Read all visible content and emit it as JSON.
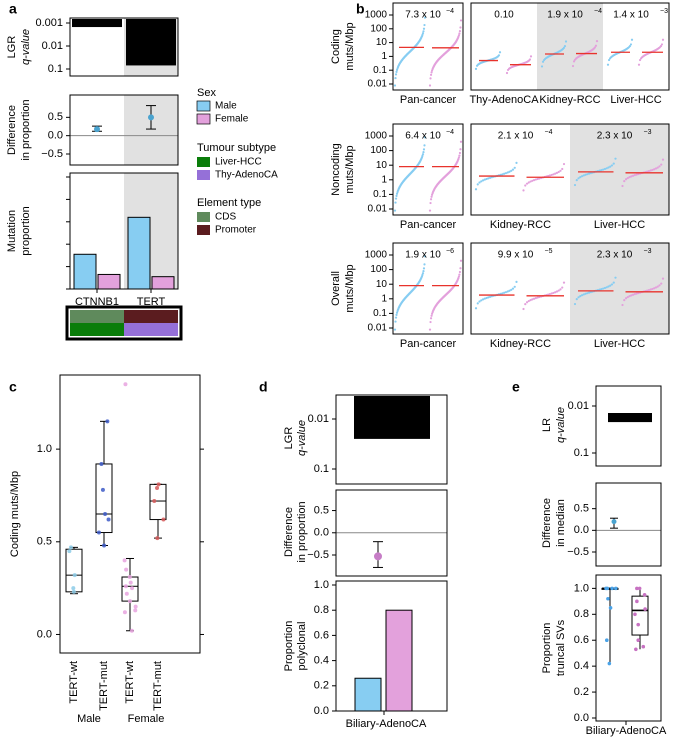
{
  "colors": {
    "male": "#87cdf2",
    "female": "#e3a1dc",
    "liver_hcc": "#0a7d0a",
    "thy_adenoca": "#9570d8",
    "cds": "#5f8a5c",
    "promoter": "#5b1c1f",
    "median_line": "#e8332c",
    "shade": "#e1e1e1"
  },
  "panel_a": {
    "label": "a",
    "lgr_label": "LGR",
    "qvalue_label": "q-value",
    "diff_label_1": "Difference",
    "diff_label_2": "in proportion",
    "mut_label_1": "Mutation",
    "mut_label_2": "proportion",
    "legend": {
      "sex_title": "Sex",
      "male": "Male",
      "female": "Female",
      "subtype_title": "Tumour subtype",
      "liver": "Liver-HCC",
      "thy": "Thy-AdenoCA",
      "element_title": "Element type",
      "cds": "CDS",
      "promoter": "Promoter"
    }
  },
  "panel_b": {
    "label": "b",
    "row_titles": [
      [
        "Coding",
        "muts/Mbp"
      ],
      [
        "Noncoding",
        "muts/Mbp"
      ],
      [
        "Overall",
        "muts/Mbp"
      ]
    ],
    "yticks": [
      "1000",
      "100",
      "10",
      "1",
      "0.1",
      "0.01"
    ],
    "rows": [
      {
        "left_label": "Pan-cancer",
        "left_p": "7.3 x 10",
        "left_exp": "−4",
        "groups": [
          {
            "label": "Thy-AdenoCA",
            "p": "0.10",
            "exp": ""
          },
          {
            "label": "Kidney-RCC",
            "p": "1.9 x 10",
            "exp": "−4"
          },
          {
            "label": "Liver-HCC",
            "p": "1.4 x 10",
            "exp": "−3"
          }
        ]
      },
      {
        "left_label": "Pan-cancer",
        "left_p": "6.4 x 10",
        "left_exp": "−4",
        "groups": [
          {
            "label": "Kidney-RCC",
            "p": "2.1 x 10",
            "exp": "−4"
          },
          {
            "label": "Liver-HCC",
            "p": "2.3 x 10",
            "exp": "−3"
          }
        ]
      },
      {
        "left_label": "Pan-cancer",
        "left_p": "1.9 x 10",
        "left_exp": "−6",
        "groups": [
          {
            "label": "Kidney-RCC",
            "p": "9.9 x 10",
            "exp": "−5"
          },
          {
            "label": "Liver-HCC",
            "p": "2.3 x 10",
            "exp": "−3"
          }
        ]
      }
    ]
  },
  "panel_c": {
    "label": "c",
    "ylabel": "Coding muts/Mbp",
    "sex_labels": [
      "Male",
      "Female"
    ]
  },
  "panel_d": {
    "label": "d",
    "lgr_label": "LGR",
    "qvalue_label": "q-value",
    "diff_label_1": "Difference",
    "diff_label_2": "in proportion",
    "poly_label_1": "Proportion",
    "poly_label_2": "polyclonal",
    "xlabel": "Biliary-AdenoCA"
  },
  "panel_e": {
    "label": "e",
    "lr_label": "LR",
    "qvalue_label": "q-value",
    "diff_label_1": "Difference",
    "diff_label_2": "in median",
    "prop_label_1": "Proportion",
    "prop_label_2": "truncal SVs",
    "xlabel": "Biliary-AdenoCA"
  },
  "chart_data": [
    {
      "panel": "a-top",
      "type": "bar",
      "title": "",
      "ylabel": "LGR q-value",
      "yscale": "log-reversed",
      "categories": [
        "CTNNB1",
        "TERT"
      ],
      "values": [
        0.0015,
        0.07
      ],
      "yticks": [
        "0.001",
        "0.01",
        "0.1"
      ]
    },
    {
      "panel": "a-middle",
      "type": "scatter",
      "ylabel": "Difference in proportion",
      "categories": [
        "CTNNB1",
        "TERT"
      ],
      "values": [
        0.18,
        0.5
      ],
      "ci_low": [
        0.12,
        0.18
      ],
      "ci_high": [
        0.26,
        0.82
      ],
      "ylim": [
        -0.8,
        1.0
      ],
      "yticks": [
        "0.5",
        "0.0",
        "−0.5"
      ]
    },
    {
      "panel": "a-bottom",
      "type": "bar",
      "ylabel": "Mutation proportion",
      "categories": [
        "CTNNB1",
        "TERT"
      ],
      "series": [
        {
          "name": "Male",
          "values": [
            0.31,
            0.64
          ]
        },
        {
          "name": "Female",
          "values": [
            0.13,
            0.11
          ]
        }
      ],
      "ylim": [
        0,
        1.0
      ],
      "yticks": [
        "0.0",
        "0.2",
        "0.4",
        "0.6",
        "0.8",
        "1.0"
      ]
    },
    {
      "panel": "b",
      "type": "scatter",
      "description": "sorted per-sample mutation rates, Male vs Female",
      "yscale": "log",
      "ylim": [
        0.005,
        2000
      ],
      "medians": {
        "coding": {
          "Pan-cancer": [
            4.5,
            4.2
          ],
          "Thy-AdenoCA": [
            0.5,
            0.25
          ],
          "Kidney-RCC": [
            1.5,
            1.6
          ],
          "Liver-HCC": [
            2.0,
            2.0
          ]
        },
        "noncoding": {
          "Pan-cancer": [
            8,
            8
          ],
          "Kidney-RCC": [
            1.8,
            1.5
          ],
          "Liver-HCC": [
            3.5,
            3.0
          ]
        },
        "overall": {
          "Pan-cancer": [
            8,
            8
          ],
          "Kidney-RCC": [
            1.8,
            1.6
          ],
          "Liver-HCC": [
            3.5,
            3.0
          ]
        }
      }
    },
    {
      "panel": "c",
      "type": "box",
      "ylabel": "Coding muts/Mbp",
      "categories": [
        "TERT-wt",
        "TERT-mut",
        "TERT-wt",
        "TERT-mut"
      ],
      "groups": [
        "Male",
        "Male",
        "Female",
        "Female"
      ],
      "q1": [
        0.23,
        0.55,
        0.18,
        0.62
      ],
      "median": [
        0.32,
        0.65,
        0.26,
        0.72
      ],
      "q3": [
        0.46,
        0.92,
        0.31,
        0.81
      ],
      "whisker_low": [
        0.22,
        0.48,
        0.02,
        0.52
      ],
      "whisker_high": [
        0.47,
        1.15,
        0.41,
        0.81
      ],
      "ylim": [
        -0.1,
        1.4
      ],
      "yticks": [
        "0.0",
        "0.5",
        "1.0"
      ]
    },
    {
      "panel": "d-top",
      "type": "bar",
      "ylabel": "LGR q-value",
      "categories": [
        "Biliary-AdenoCA"
      ],
      "values": [
        0.025
      ],
      "yticks": [
        "0.01",
        "0.1"
      ]
    },
    {
      "panel": "d-middle",
      "type": "scatter",
      "ylabel": "Difference in proportion",
      "values": [
        -0.53
      ],
      "ci_low": [
        -0.78
      ],
      "ci_high": [
        -0.2
      ],
      "ylim": [
        -0.95,
        0.85
      ],
      "yticks": [
        "0.5",
        "0.0",
        "−0.5"
      ]
    },
    {
      "panel": "d-bottom",
      "type": "bar",
      "ylabel": "Proportion polyclonal",
      "categories": [
        "Biliary-AdenoCA"
      ],
      "series": [
        {
          "name": "Male",
          "values": [
            0.26
          ]
        },
        {
          "name": "Female",
          "values": [
            0.8
          ]
        }
      ],
      "ylim": [
        0,
        1.0
      ],
      "yticks": [
        "0.0",
        "0.2",
        "0.4",
        "0.6",
        "0.8",
        "1.0"
      ]
    },
    {
      "panel": "e-top",
      "type": "bar",
      "ylabel": "LR q-value",
      "categories": [
        "Biliary-AdenoCA"
      ],
      "values": [
        0.022
      ],
      "yticks": [
        "0.01",
        "0.1"
      ]
    },
    {
      "panel": "e-middle",
      "type": "scatter",
      "ylabel": "Difference in median",
      "values": [
        0.2
      ],
      "ci_low": [
        0.05
      ],
      "ci_high": [
        0.28
      ],
      "ylim": [
        -0.8,
        1.0
      ],
      "yticks": [
        "0.5",
        "0.0",
        "−0.5"
      ]
    },
    {
      "panel": "e-bottom",
      "type": "box",
      "ylabel": "Proportion truncal SVs",
      "groups": [
        "Male",
        "Female"
      ],
      "q1": [
        1.0,
        0.64
      ],
      "median": [
        1.0,
        0.83
      ],
      "q3": [
        1.0,
        0.94
      ],
      "whisker_low": [
        0.42,
        0.53
      ],
      "whisker_high": [
        1.0,
        1.0
      ],
      "ylim": [
        0,
        1.08
      ],
      "yticks": [
        "0.0",
        "0.2",
        "0.4",
        "0.6",
        "0.8",
        "1.0"
      ]
    }
  ]
}
